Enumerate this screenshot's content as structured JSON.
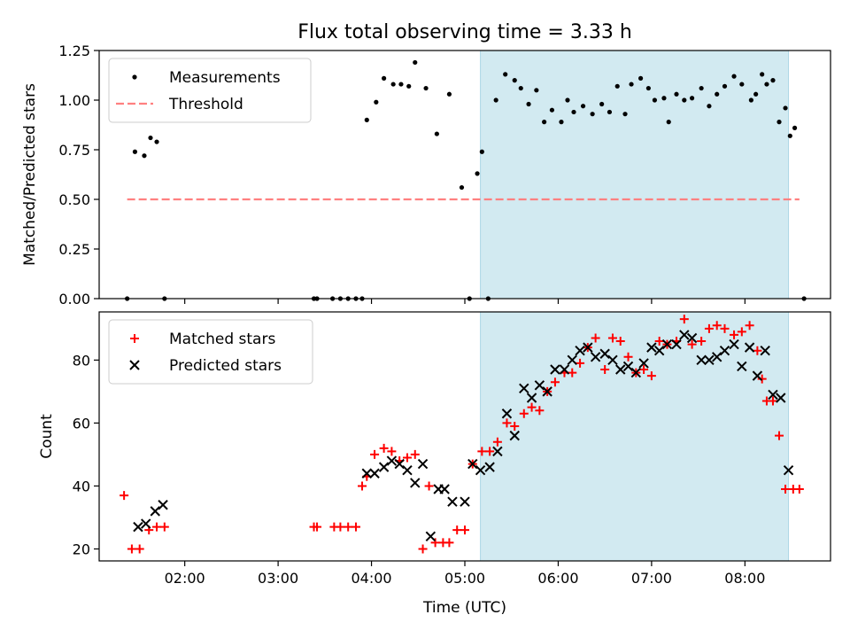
{
  "figure": {
    "title": "Flux total observing time = 3.33 h",
    "xlabel": "Time (UTC)"
  },
  "colors": {
    "highlight": "#add8e6",
    "measurement": "#000000",
    "threshold": "#ff8080",
    "matched": "#ff0000",
    "predicted": "#000000"
  },
  "chart_data": [
    {
      "type": "scatter",
      "panel": "top",
      "ylabel": "Matched/Predicted stars",
      "xlim": [
        "01:05",
        "08:55"
      ],
      "ylim": [
        0,
        1.25
      ],
      "yticks": [
        0.0,
        0.25,
        0.5,
        0.75,
        1.0,
        1.25
      ],
      "ytick_labels": [
        "0.00",
        "0.25",
        "0.50",
        "0.75",
        "1.00",
        "1.25"
      ],
      "legend_position": "top-left",
      "highlight_span": [
        "05:10",
        "08:28"
      ],
      "threshold": {
        "name": "Threshold",
        "value": 0.5,
        "x_range": [
          "01:23",
          "08:35"
        ],
        "style": "dashed"
      },
      "series": [
        {
          "name": "Measurements",
          "x": [
            "01:23",
            "01:28",
            "01:34",
            "01:38",
            "01:42",
            "01:47",
            "03:23",
            "03:25",
            "03:35",
            "03:40",
            "03:45",
            "03:50",
            "03:54",
            "03:57",
            "04:03",
            "04:08",
            "04:14",
            "04:19",
            "04:24",
            "04:28",
            "04:35",
            "04:42",
            "04:50",
            "04:58",
            "05:03",
            "05:08",
            "05:11",
            "05:15",
            "05:20",
            "05:26",
            "05:32",
            "05:36",
            "05:41",
            "05:46",
            "05:51",
            "05:56",
            "06:02",
            "06:06",
            "06:10",
            "06:16",
            "06:22",
            "06:28",
            "06:33",
            "06:38",
            "06:43",
            "06:47",
            "06:53",
            "06:58",
            "07:02",
            "07:08",
            "07:11",
            "07:16",
            "07:21",
            "07:26",
            "07:32",
            "07:37",
            "07:42",
            "07:47",
            "07:53",
            "07:58",
            "08:04",
            "08:07",
            "08:11",
            "08:14",
            "08:18",
            "08:22",
            "08:26",
            "08:29",
            "08:32",
            "08:38"
          ],
          "y": [
            0,
            0.74,
            0.72,
            0.81,
            0.79,
            0,
            0,
            0,
            0,
            0,
            0,
            0,
            0,
            0.9,
            0.99,
            1.11,
            1.08,
            1.08,
            1.07,
            1.19,
            1.06,
            0.83,
            1.03,
            0.56,
            0,
            0.63,
            0.74,
            0,
            1.0,
            1.13,
            1.1,
            1.06,
            0.98,
            1.05,
            0.89,
            0.95,
            0.89,
            1.0,
            0.94,
            0.97,
            0.93,
            0.98,
            0.94,
            1.07,
            0.93,
            1.08,
            1.11,
            1.06,
            1.0,
            1.01,
            0.89,
            1.03,
            1.0,
            1.01,
            1.06,
            0.97,
            1.03,
            1.07,
            1.12,
            1.08,
            1.0,
            1.03,
            1.13,
            1.08,
            1.1,
            0.89,
            0.96,
            0.82,
            0.86,
            0
          ]
        }
      ]
    },
    {
      "type": "scatter",
      "panel": "bottom",
      "ylabel": "Count",
      "xlim": [
        "01:05",
        "08:55"
      ],
      "ylim": [
        16.2,
        95.3
      ],
      "yticks": [
        20,
        40,
        60,
        80
      ],
      "ytick_labels": [
        "20",
        "40",
        "60",
        "80"
      ],
      "xticks": [
        "02:00",
        "03:00",
        "04:00",
        "05:00",
        "06:00",
        "07:00",
        "08:00"
      ],
      "xtick_labels": [
        "02:00",
        "03:00",
        "04:00",
        "05:00",
        "06:00",
        "07:00",
        "08:00"
      ],
      "legend_position": "top-left",
      "highlight_span": [
        "05:10",
        "08:28"
      ],
      "series": [
        {
          "name": "Matched stars",
          "marker": "plus",
          "x": [
            "01:21",
            "01:26",
            "01:31",
            "01:37",
            "01:42",
            "01:47",
            "03:23",
            "03:25",
            "03:36",
            "03:40",
            "03:45",
            "03:50",
            "03:54",
            "03:57",
            "04:02",
            "04:08",
            "04:13",
            "04:18",
            "04:23",
            "04:28",
            "04:33",
            "04:37",
            "04:41",
            "04:46",
            "04:50",
            "04:55",
            "05:00",
            "05:05",
            "05:11",
            "05:16",
            "05:21",
            "05:27",
            "05:32",
            "05:38",
            "05:43",
            "05:48",
            "05:53",
            "05:58",
            "06:04",
            "06:09",
            "06:14",
            "06:19",
            "06:24",
            "06:30",
            "06:35",
            "06:40",
            "06:45",
            "06:50",
            "06:55",
            "07:00",
            "07:05",
            "07:10",
            "07:16",
            "07:21",
            "07:26",
            "07:32",
            "07:37",
            "07:42",
            "07:47",
            "07:53",
            "07:58",
            "08:03",
            "08:08",
            "08:11",
            "08:14",
            "08:18",
            "08:22",
            "08:26",
            "08:31",
            "08:35"
          ],
          "y": [
            37,
            20,
            20,
            26,
            27,
            27,
            27,
            27,
            27,
            27,
            27,
            27,
            40,
            43,
            50,
            52,
            51,
            48,
            49,
            50,
            20,
            40,
            22,
            22,
            22,
            26,
            26,
            47,
            51,
            51,
            54,
            60,
            59,
            63,
            65,
            64,
            70,
            73,
            76,
            76,
            79,
            84,
            87,
            77,
            87,
            86,
            81,
            76,
            77,
            75,
            86,
            85,
            86,
            93,
            85,
            86,
            90,
            91,
            90,
            88,
            89,
            91,
            83,
            74,
            67,
            67,
            56,
            39,
            39,
            39
          ]
        },
        {
          "name": "Predicted stars",
          "marker": "x",
          "x": [
            "01:30",
            "01:35",
            "01:41",
            "01:46",
            "03:57",
            "04:02",
            "04:08",
            "04:13",
            "04:18",
            "04:23",
            "04:28",
            "04:33",
            "04:38",
            "04:43",
            "04:47",
            "04:52",
            "05:00",
            "05:05",
            "05:10",
            "05:16",
            "05:21",
            "05:27",
            "05:32",
            "05:38",
            "05:43",
            "05:48",
            "05:53",
            "05:58",
            "06:04",
            "06:09",
            "06:14",
            "06:19",
            "06:24",
            "06:30",
            "06:35",
            "06:40",
            "06:45",
            "06:50",
            "06:55",
            "07:00",
            "07:05",
            "07:10",
            "07:16",
            "07:21",
            "07:26",
            "07:32",
            "07:37",
            "07:42",
            "07:47",
            "07:53",
            "07:58",
            "08:03",
            "08:08",
            "08:13",
            "08:18",
            "08:23",
            "08:28"
          ],
          "y": [
            27,
            28,
            32,
            34,
            44,
            44,
            46,
            48,
            47,
            45,
            41,
            47,
            24,
            39,
            39,
            35,
            35,
            47,
            45,
            46,
            51,
            63,
            56,
            71,
            68,
            72,
            70,
            77,
            77,
            80,
            83,
            84,
            81,
            82,
            80,
            77,
            78,
            76,
            79,
            84,
            83,
            85,
            85,
            88,
            87,
            80,
            80,
            81,
            83,
            85,
            78,
            84,
            75,
            83,
            69,
            68,
            45
          ]
        }
      ]
    }
  ]
}
